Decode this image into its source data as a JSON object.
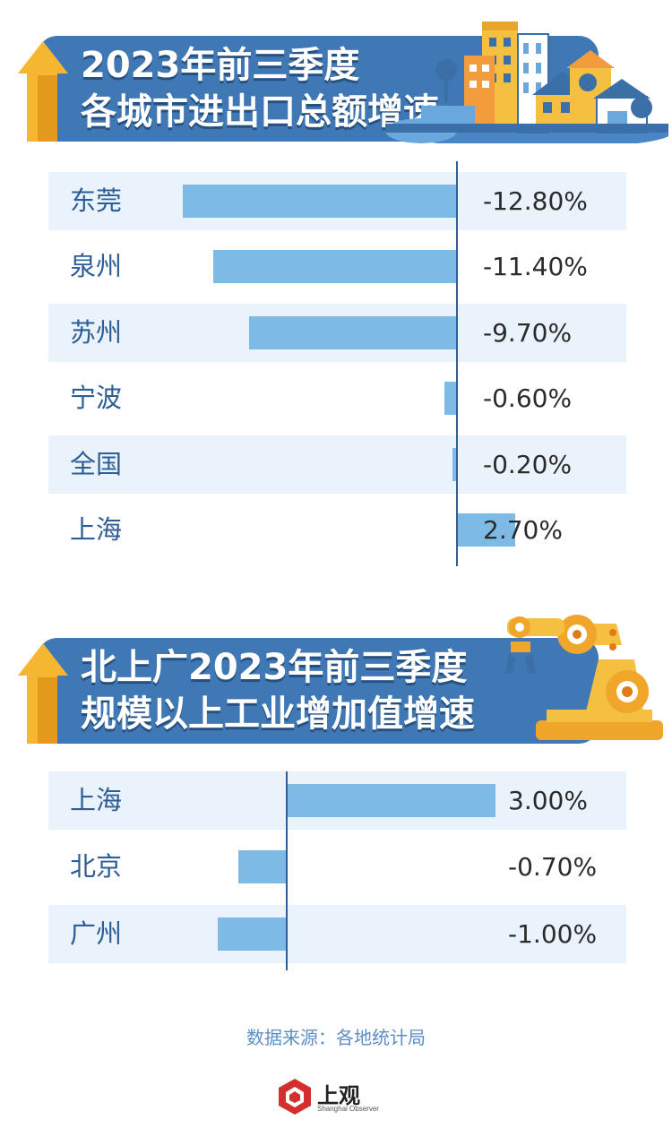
{
  "chart1": {
    "title_line1": "2023年前三季度",
    "title_line2": "各城市进出口总额增速"
  },
  "chart2": {
    "title_line1": "北上广2023年前三季度",
    "title_line2": "规模以上工业增加值增速"
  },
  "chart_data": [
    {
      "type": "bar",
      "orientation": "horizontal",
      "title": "2023年前三季度各城市进出口总额增速",
      "categories": [
        "东莞",
        "泉州",
        "苏州",
        "宁波",
        "全国",
        "上海"
      ],
      "values": [
        -12.8,
        -11.4,
        -9.7,
        -0.6,
        -0.2,
        2.7
      ],
      "value_labels": [
        "-12.80%",
        "-11.40%",
        "-9.70%",
        "-0.60%",
        "-0.20%",
        "2.70%"
      ],
      "unit": "%",
      "grid": false,
      "colors": {
        "bar": "#7dbbe6",
        "axis": "#2f5f96",
        "label": "#2d5e96",
        "shade": "#eaf2fb"
      }
    },
    {
      "type": "bar",
      "orientation": "horizontal",
      "title": "北上广2023年前三季度规模以上工业增加值增速",
      "categories": [
        "上海",
        "北京",
        "广州"
      ],
      "values": [
        3.0,
        -0.7,
        -1.0
      ],
      "value_labels": [
        "3.00%",
        "-0.70%",
        "-1.00%"
      ],
      "unit": "%",
      "grid": false,
      "colors": {
        "bar": "#7dbbe6",
        "axis": "#2f5f96",
        "label": "#2d5e96",
        "shade": "#eaf2fb"
      }
    }
  ],
  "footer": {
    "source": "数据来源：各地统计局",
    "logo_name": "上观",
    "logo_sub": "Shanghai Observer"
  }
}
